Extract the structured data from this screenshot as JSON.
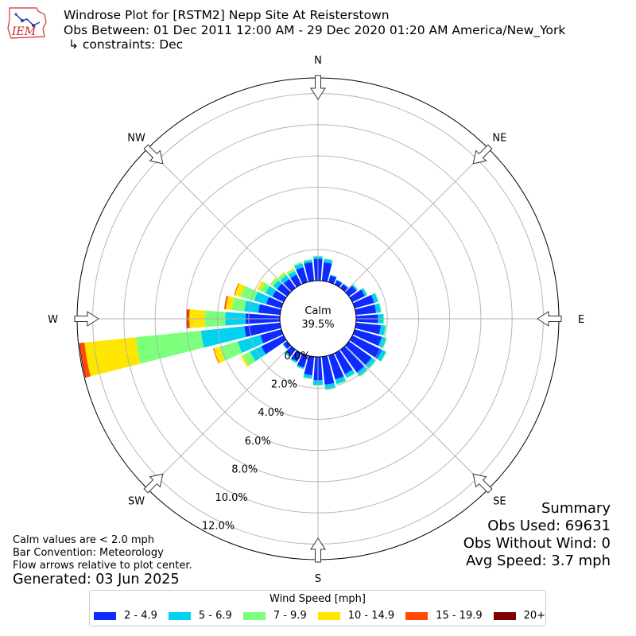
{
  "header": {
    "logo_text": "IEM",
    "title": "Windrose Plot for [RSTM2] Nepp Site At Reisterstown",
    "subtitle": "Obs Between: 01 Dec 2011 12:00 AM - 29 Dec 2020 01:20 AM America/New_York",
    "constraints": "↳ constraints: Dec"
  },
  "notes": {
    "calm_note": "Calm values are < 2.0 mph",
    "bar_convention": "Bar Convention: Meteorology",
    "flow_note": "Flow arrows relative to plot center.",
    "generated": "Generated: 03 Jun 2025"
  },
  "summary": {
    "title": "Summary",
    "obs_used": "Obs Used: 69631",
    "obs_without_wind": "Obs Without Wind: 0",
    "avg_speed": "Avg Speed: 3.7 mph"
  },
  "chart_data": {
    "type": "windrose",
    "calm_label": "Calm",
    "calm_value": "39.5%",
    "radial_ticks": [
      0,
      2,
      4,
      6,
      8,
      10,
      12
    ],
    "radial_tick_labels": [
      "0.0%",
      "2.0%",
      "4.0%",
      "6.0%",
      "8.0%",
      "10.0%",
      "12.0%"
    ],
    "radial_max": 13.0,
    "grid": true,
    "compass_labels": [
      "N",
      "NE",
      "E",
      "SE",
      "S",
      "SW",
      "W",
      "NW"
    ],
    "legend_title": "Wind Speed [mph]",
    "legend_placement": "bottom",
    "speed_bins": [
      {
        "label": "2 - 4.9",
        "color": "#0d2bff"
      },
      {
        "label": "5 - 6.9",
        "color": "#00d2f0"
      },
      {
        "label": "7 - 9.9",
        "color": "#7cff7b"
      },
      {
        "label": "10 - 14.9",
        "color": "#ffe600"
      },
      {
        "label": "15 - 19.9",
        "color": "#ff4a00"
      },
      {
        "label": "20+",
        "color": "#7f0000"
      }
    ],
    "direction_bins": [
      {
        "dir": 0,
        "values": [
          1.4,
          0.15,
          0.05,
          0,
          0,
          0
        ]
      },
      {
        "dir": 10,
        "values": [
          1.2,
          0.2,
          0.05,
          0,
          0,
          0
        ]
      },
      {
        "dir": 20,
        "values": [
          0.45,
          0.05,
          0,
          0,
          0,
          0
        ]
      },
      {
        "dir": 30,
        "values": [
          0.3,
          0.05,
          0,
          0,
          0,
          0
        ]
      },
      {
        "dir": 40,
        "values": [
          0.3,
          0.05,
          0,
          0,
          0,
          0
        ]
      },
      {
        "dir": 50,
        "values": [
          0.6,
          0.1,
          0.03,
          0,
          0,
          0
        ]
      },
      {
        "dir": 60,
        "values": [
          0.9,
          0.15,
          0.03,
          0,
          0,
          0
        ]
      },
      {
        "dir": 70,
        "values": [
          1.3,
          0.25,
          0.05,
          0,
          0,
          0
        ]
      },
      {
        "dir": 80,
        "values": [
          1.3,
          0.3,
          0.05,
          0,
          0,
          0
        ]
      },
      {
        "dir": 90,
        "values": [
          1.4,
          0.35,
          0.05,
          0,
          0,
          0
        ]
      },
      {
        "dir": 100,
        "values": [
          1.6,
          0.3,
          0.05,
          0,
          0,
          0
        ]
      },
      {
        "dir": 110,
        "values": [
          1.8,
          0.3,
          0.05,
          0,
          0,
          0
        ]
      },
      {
        "dir": 120,
        "values": [
          2.1,
          0.3,
          0.05,
          0,
          0,
          0
        ]
      },
      {
        "dir": 130,
        "values": [
          1.8,
          0.3,
          0.05,
          0,
          0,
          0
        ]
      },
      {
        "dir": 140,
        "values": [
          1.8,
          0.3,
          0.05,
          0,
          0,
          0
        ]
      },
      {
        "dir": 150,
        "values": [
          1.5,
          0.25,
          0.05,
          0,
          0,
          0
        ]
      },
      {
        "dir": 160,
        "values": [
          1.6,
          0.3,
          0.05,
          0,
          0,
          0
        ]
      },
      {
        "dir": 170,
        "values": [
          1.8,
          0.3,
          0.05,
          0,
          0,
          0
        ]
      },
      {
        "dir": 180,
        "values": [
          1.5,
          0.3,
          0.05,
          0,
          0,
          0
        ]
      },
      {
        "dir": 190,
        "values": [
          1.2,
          0.2,
          0.05,
          0,
          0,
          0
        ]
      },
      {
        "dir": 200,
        "values": [
          0.8,
          0.1,
          0.03,
          0,
          0,
          0
        ]
      },
      {
        "dir": 210,
        "values": [
          0.6,
          0.1,
          0.03,
          0,
          0,
          0
        ]
      },
      {
        "dir": 220,
        "values": [
          0.5,
          0.1,
          0.03,
          0,
          0,
          0
        ]
      },
      {
        "dir": 230,
        "values": [
          0.3,
          0.05,
          0,
          0,
          0,
          0
        ]
      },
      {
        "dir": 240,
        "values": [
          1.6,
          0.8,
          0.5,
          0.15,
          0,
          0
        ]
      },
      {
        "dir": 250,
        "values": [
          1.4,
          1.5,
          1.2,
          0.4,
          0.05,
          0
        ]
      },
      {
        "dir": 260,
        "values": [
          2.3,
          2.8,
          4.2,
          3.3,
          0.3,
          0.05
        ]
      },
      {
        "dir": 270,
        "values": [
          2.2,
          1.3,
          1.3,
          1.0,
          0.15,
          0.03
        ]
      },
      {
        "dir": 280,
        "values": [
          1.4,
          0.9,
          0.8,
          0.4,
          0.1,
          0
        ]
      },
      {
        "dir": 290,
        "values": [
          1.0,
          0.8,
          0.9,
          0.4,
          0.05,
          0
        ]
      },
      {
        "dir": 300,
        "values": [
          0.8,
          0.5,
          0.4,
          0.2,
          0,
          0
        ]
      },
      {
        "dir": 310,
        "values": [
          0.8,
          0.3,
          0.2,
          0.05,
          0,
          0
        ]
      },
      {
        "dir": 320,
        "values": [
          0.7,
          0.3,
          0.2,
          0.05,
          0,
          0
        ]
      },
      {
        "dir": 330,
        "values": [
          0.7,
          0.25,
          0.15,
          0.05,
          0,
          0
        ]
      },
      {
        "dir": 340,
        "values": [
          1.0,
          0.25,
          0.1,
          0,
          0,
          0
        ]
      },
      {
        "dir": 350,
        "values": [
          1.2,
          0.15,
          0.05,
          0,
          0,
          0
        ]
      }
    ]
  }
}
